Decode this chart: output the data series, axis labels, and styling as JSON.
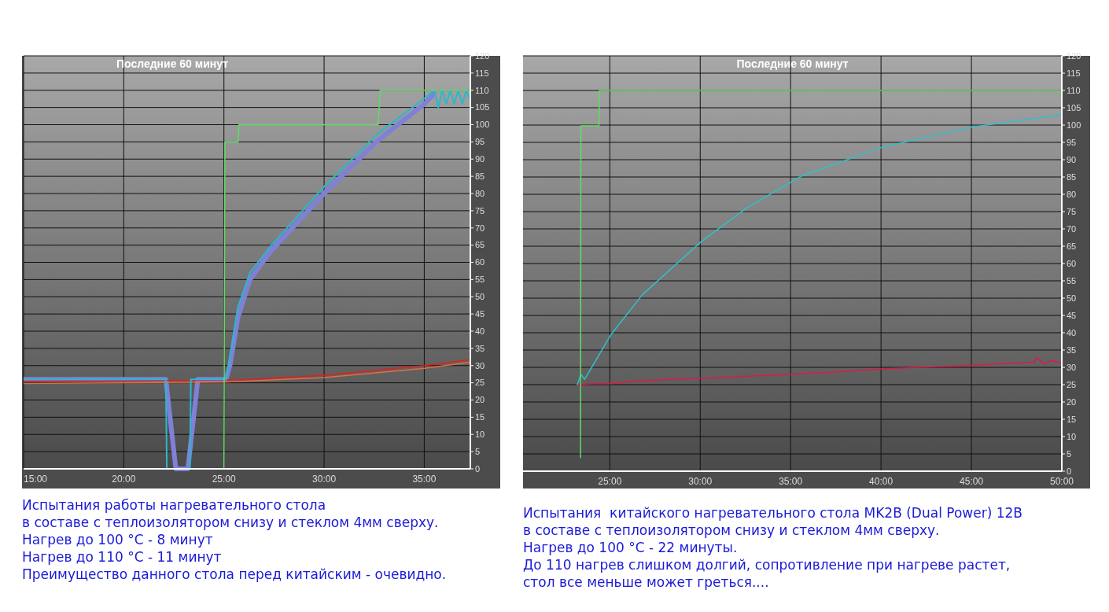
{
  "chart_data": [
    {
      "type": "line",
      "title": "Последние 60 минут",
      "xlim": [
        15,
        37.3
      ],
      "ylim": [
        0,
        120
      ],
      "xticks": [
        {
          "value": 15,
          "label": "15:00"
        },
        {
          "value": 20,
          "label": "20:00"
        },
        {
          "value": 25,
          "label": "25:00"
        },
        {
          "value": 30,
          "label": "30:00"
        },
        {
          "value": 35,
          "label": "35:00"
        }
      ],
      "yticks": [
        0,
        5,
        10,
        15,
        20,
        25,
        30,
        35,
        40,
        45,
        50,
        55,
        60,
        65,
        70,
        75,
        80,
        85,
        90,
        95,
        100,
        105,
        110,
        115,
        120
      ],
      "grid": true,
      "marker": "none",
      "line_style": "solid",
      "series": [
        {
          "color": "#8080d8",
          "x": [
            15,
            20,
            22.1,
            22.6,
            23.2,
            23.7,
            25.1,
            25.3,
            25.7,
            26.3,
            27.3,
            30,
            32.6,
            35,
            35.5
          ],
          "values": [
            26,
            26,
            26,
            0,
            0,
            26,
            26,
            30,
            44,
            55,
            63,
            80,
            95,
            106,
            109
          ]
        },
        {
          "color": "#e07040",
          "x": [
            15,
            20,
            25,
            30,
            35,
            37.3
          ],
          "values": [
            24.8,
            25,
            25.2,
            26.5,
            29.2,
            31
          ]
        },
        {
          "color": "#e02020",
          "x": [
            15,
            20,
            26,
            30,
            35,
            37.3
          ],
          "values": [
            25.5,
            25.6,
            25.9,
            27.2,
            30,
            31.7
          ]
        },
        {
          "color": "#2ab8cc",
          "x": [
            15,
            20,
            22.1,
            22.15,
            23.3,
            23.35,
            25.1,
            25.4,
            25.7,
            26.3,
            27.3,
            30,
            32.6,
            35,
            35.5,
            35.7,
            35.9,
            36.1,
            36.3,
            36.5,
            36.7,
            36.9,
            37.1,
            37.3
          ],
          "values": [
            26,
            26,
            26,
            0,
            0,
            26,
            26,
            36,
            47,
            57,
            64.5,
            82,
            97,
            107.6,
            110,
            105,
            110,
            106,
            110,
            106,
            110,
            106,
            110,
            107
          ]
        },
        {
          "color": "#60dd60",
          "x": [
            25,
            25.05,
            25.7,
            25.75,
            32.7,
            32.8,
            37.3
          ],
          "values": [
            0,
            95,
            95,
            100,
            100,
            110,
            110
          ]
        }
      ],
      "annotations": [
        "Испытания работы нагревательного стола",
        "в составе с теплоизолятором снизу и стеклом 4мм сверху.",
        "Нагрев до 100 °C - 8 минут",
        "Нагрев до 110 °C - 11 минут",
        "Преимущество данного стола перед китайским - очевидно."
      ]
    },
    {
      "type": "line",
      "title": "Последние 60 минут",
      "xlim": [
        20.2,
        50
      ],
      "ylim": [
        0,
        120
      ],
      "xticks": [
        {
          "value": 25,
          "label": "25:00"
        },
        {
          "value": 30,
          "label": "30:00"
        },
        {
          "value": 35,
          "label": "35:00"
        },
        {
          "value": 40,
          "label": "40:00"
        },
        {
          "value": 45,
          "label": "45:00"
        },
        {
          "value": 50,
          "label": "50:00"
        }
      ],
      "yticks": [
        0,
        5,
        10,
        15,
        20,
        25,
        30,
        35,
        40,
        45,
        50,
        55,
        60,
        65,
        70,
        75,
        80,
        85,
        90,
        95,
        100,
        105,
        110,
        115,
        120
      ],
      "grid": true,
      "marker": "none",
      "line_style": "solid",
      "series": [
        {
          "color": "#e0184a",
          "x": [
            23.2,
            24,
            25,
            26,
            27,
            28,
            29,
            30,
            32,
            35,
            37,
            40,
            42,
            45,
            47,
            48.5,
            48.6,
            49,
            49.5,
            50
          ],
          "values": [
            25,
            25.3,
            25.3,
            25.8,
            26.2,
            26.4,
            26.7,
            26.8,
            27.3,
            28,
            28.5,
            29.5,
            30,
            30.5,
            31.2,
            31.5,
            33,
            31,
            32,
            31
          ]
        },
        {
          "color": "#30c0c8",
          "x": [
            23.2,
            23.4,
            23.6,
            24,
            25.07,
            26.8,
            30.07,
            32.55,
            35.65,
            40.02,
            44.99,
            50
          ],
          "values": [
            25,
            28,
            26.5,
            30,
            39.5,
            51,
            66.4,
            76,
            85.4,
            93.5,
            99.4,
            103
          ]
        },
        {
          "color": "#60dd60",
          "x": [
            23.38,
            23.4,
            24.4,
            24.43,
            50
          ],
          "values": [
            3.9,
            99.8,
            99.8,
            110,
            110
          ]
        }
      ],
      "annotations": [
        "Испытания  китайского нагревательного стола MK2B (Dual Power) 12В",
        "в составе с теплоизолятором снизу и стеклом 4мм сверху.",
        "Нагрев до 100 °C - 22 минуты.",
        "До 110 нагрев слишком долгий, сопротивление при нагреве растет,",
        "стол все меньше может греться...."
      ]
    }
  ]
}
